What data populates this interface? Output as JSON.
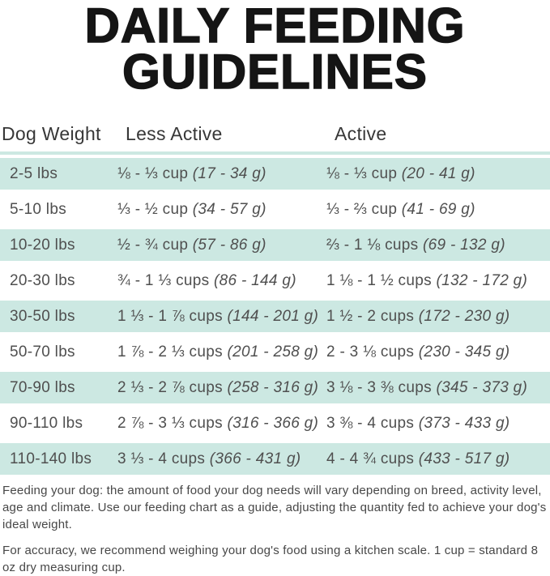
{
  "title": {
    "line1": "DAILY FEEDING",
    "line2": "GUIDELINES"
  },
  "colors": {
    "shaded_row": "#cce8e2",
    "rule": "#cce8e2",
    "title_text": "#151515",
    "body_text": "#4f4f4f"
  },
  "table": {
    "columns": [
      {
        "id": "dog-weight",
        "label": "Dog Weight"
      },
      {
        "id": "less-active",
        "label": "Less Active"
      },
      {
        "id": "active",
        "label": "Active"
      }
    ],
    "rows": [
      {
        "weight": "2-5 lbs",
        "shaded": true,
        "less_active": {
          "cups": "⅛ - ⅓ cup",
          "grams": "(17 - 34 g)"
        },
        "active": {
          "cups": "⅛ - ⅓ cup",
          "grams": "(20 - 41 g)"
        }
      },
      {
        "weight": "5-10 lbs",
        "shaded": false,
        "less_active": {
          "cups": "⅓ - ½ cup",
          "grams": "(34 - 57 g)"
        },
        "active": {
          "cups": "⅓ - ⅔ cup",
          "grams": "(41 - 69 g)"
        }
      },
      {
        "weight": "10-20 lbs",
        "shaded": true,
        "less_active": {
          "cups": "½ - ¾ cup",
          "grams": "(57 - 86 g)"
        },
        "active": {
          "cups": "⅔ - 1 ⅛ cups",
          "grams": "(69 - 132 g)"
        }
      },
      {
        "weight": "20-30 lbs",
        "shaded": false,
        "less_active": {
          "cups": "¾ - 1 ⅓ cups",
          "grams": "(86 - 144 g)"
        },
        "active": {
          "cups": "1 ⅛ - 1 ½ cups",
          "grams": "(132 - 172 g)"
        }
      },
      {
        "weight": "30-50 lbs",
        "shaded": true,
        "less_active": {
          "cups": "1 ⅓ - 1 ⅞ cups",
          "grams": "(144 - 201 g)"
        },
        "active": {
          "cups": "1 ½ - 2 cups",
          "grams": "(172 - 230 g)"
        }
      },
      {
        "weight": "50-70 lbs",
        "shaded": false,
        "less_active": {
          "cups": "1 ⅞ - 2 ⅓ cups",
          "grams": "(201 - 258 g)"
        },
        "active": {
          "cups": "2 - 3 ⅛ cups",
          "grams": "(230 - 345 g)"
        }
      },
      {
        "weight": "70-90 lbs",
        "shaded": true,
        "less_active": {
          "cups": "2 ⅓ - 2 ⅞ cups",
          "grams": "(258 - 316 g)"
        },
        "active": {
          "cups": "3 ⅛ - 3 ⅜ cups",
          "grams": "(345 - 373 g)"
        }
      },
      {
        "weight": "90-110 lbs",
        "shaded": false,
        "less_active": {
          "cups": "2 ⅞ - 3 ⅓ cups",
          "grams": "(316 - 366 g)"
        },
        "active": {
          "cups": "3 ⅜ - 4 cups",
          "grams": "(373 - 433 g)"
        }
      },
      {
        "weight": "110-140 lbs",
        "shaded": true,
        "less_active": {
          "cups": "3 ⅓ - 4 cups",
          "grams": "(366 - 431 g)"
        },
        "active": {
          "cups": "4 - 4 ¾ cups",
          "grams": "(433 - 517 g)"
        }
      }
    ]
  },
  "footnotes": [
    "Feeding your dog: the amount of food your dog needs will vary depending on breed, activity level, age and climate. Use our feeding chart as a guide, adjusting the quantity fed to achieve your dog's ideal weight.",
    "For accuracy, we recommend weighing your dog's food using a kitchen scale. 1 cup = standard 8 oz dry measuring cup."
  ]
}
